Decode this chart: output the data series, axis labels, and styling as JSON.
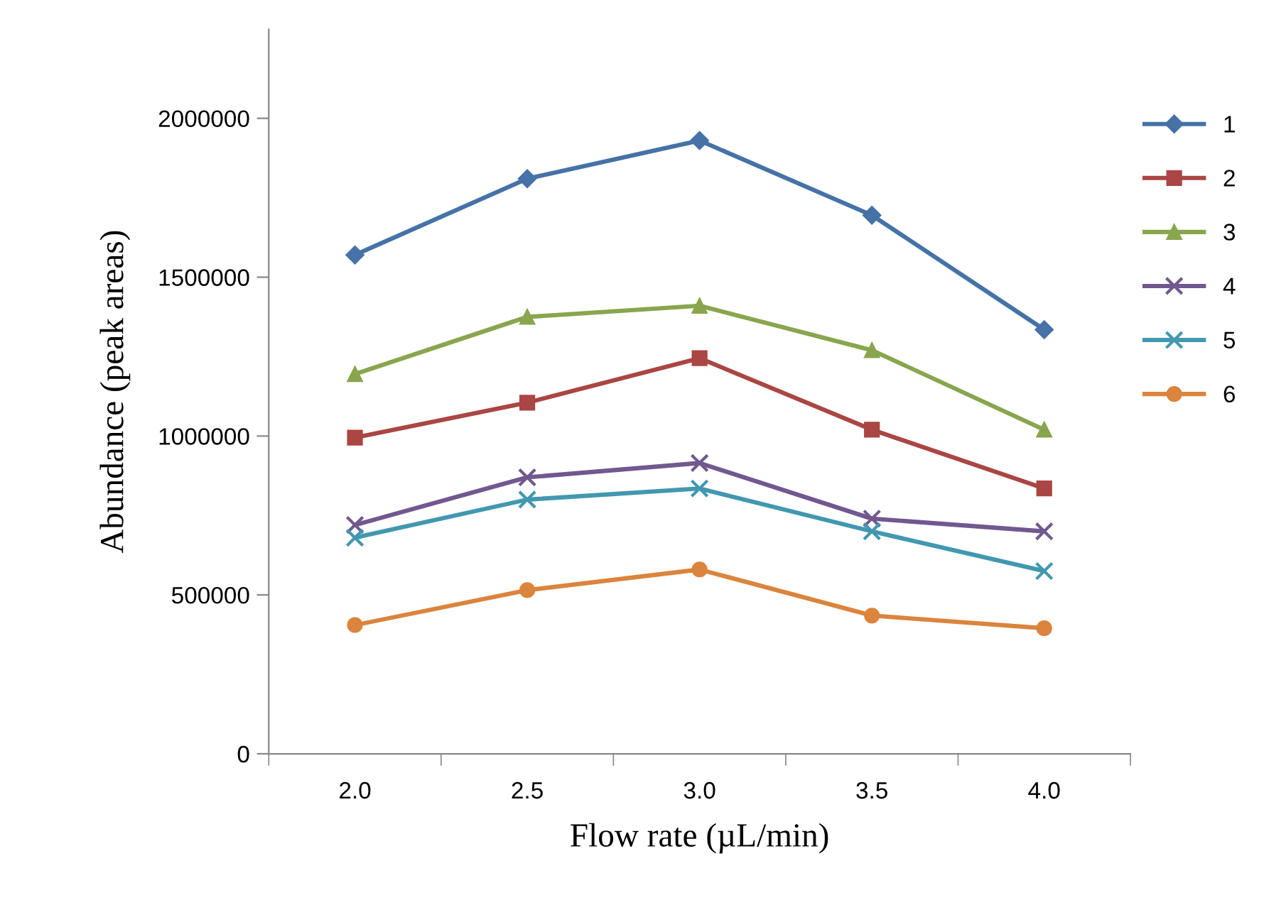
{
  "chart_data": {
    "type": "line",
    "xlabel": "Flow rate (µL/min)",
    "ylabel": "Abundance (peak areas)",
    "categories": [
      "2.0",
      "2.5",
      "3.0",
      "3.5",
      "4.0"
    ],
    "ylim": [
      0,
      2280000
    ],
    "yticks": [
      0,
      500000,
      1000000,
      1500000,
      2000000
    ],
    "grid": false,
    "legend": "right",
    "line_style": "solid",
    "series": [
      {
        "name": "1",
        "color": "#4572a7",
        "marker": "diamond",
        "values": [
          1570000,
          1810000,
          1930000,
          1695000,
          1335000
        ]
      },
      {
        "name": "2",
        "color": "#aa4643",
        "marker": "square",
        "values": [
          995000,
          1105000,
          1245000,
          1020000,
          835000
        ]
      },
      {
        "name": "3",
        "color": "#89a54e",
        "marker": "triangle",
        "values": [
          1195000,
          1375000,
          1410000,
          1270000,
          1020000
        ]
      },
      {
        "name": "4",
        "color": "#71588f",
        "marker": "cross",
        "values": [
          720000,
          870000,
          915000,
          740000,
          700000
        ]
      },
      {
        "name": "5",
        "color": "#4198af",
        "marker": "cross",
        "values": [
          680000,
          800000,
          835000,
          700000,
          575000
        ]
      },
      {
        "name": "6",
        "color": "#db843d",
        "marker": "circle",
        "values": [
          405000,
          515000,
          580000,
          435000,
          395000
        ]
      }
    ]
  }
}
